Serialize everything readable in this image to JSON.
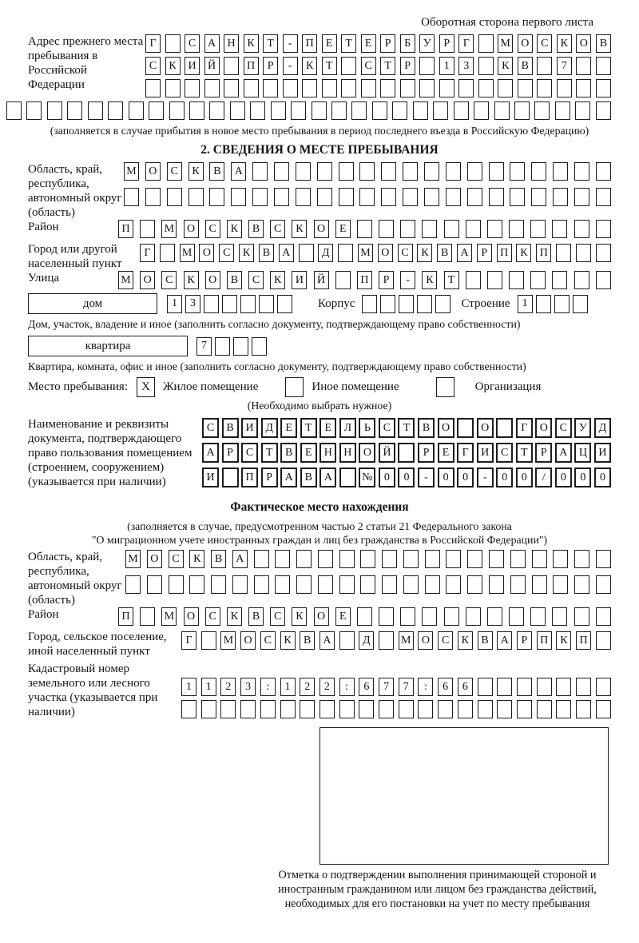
{
  "page": {
    "header_note": "Оборотная сторона первого листа"
  },
  "prev_address": {
    "label": "Адрес прежнего места пребывания в Российской Федерации",
    "rows": [
      {
        "text": "Г САНКТ-ПЕТЕРБУРГ МОСКОВ",
        "len": 24
      },
      {
        "text": "СКИЙ ПР-КТ СТР 13 КВ 7",
        "len": 24
      },
      {
        "text": "",
        "len": 24
      }
    ],
    "overflow_row": {
      "text": "",
      "len": 30
    },
    "caption": "(заполняется в случае прибытия в новое место пребывания в период последнего въезда в Российскую Федерацию)"
  },
  "section2": {
    "title": "2. СВЕДЕНИЯ О МЕСТЕ ПРЕБЫВАНИЯ",
    "oblast": {
      "label": "Область, край, республика, автономный округ (область)",
      "rows": [
        {
          "text": "МОСКВА",
          "len": 23
        },
        {
          "text": "",
          "len": 23
        }
      ]
    },
    "raion": {
      "label": "Район",
      "row": {
        "text": "П МОСКВСКОЕ",
        "len": 23
      }
    },
    "gorod": {
      "label": "Город или другой населенный пункт",
      "row": {
        "text": "Г МОСКВА Д МОСКВАРПКП",
        "len": 24
      }
    },
    "ulitsa": {
      "label": "Улица",
      "row": {
        "text": "МОСКОВСКИЙ ПР-КТ",
        "len": 23
      }
    },
    "dom": {
      "box_label": "дом",
      "cells": {
        "text": "13",
        "len": 7
      },
      "korpus_label": "Корпус",
      "korpus_cells": {
        "text": "",
        "len": 5
      },
      "stroenie_label": "Строение",
      "stroenie_cells": {
        "text": "1",
        "len": 4
      },
      "caption": "Дом, участок, владение и иное (заполнить согласно документу, подтверждающему право собственности)"
    },
    "kvartira": {
      "box_label": "квартира",
      "cells": {
        "text": "7",
        "len": 4
      },
      "caption": "Квартира, комната, офис и иное (заполнить согласно документу, подтверждающему право собственности)"
    },
    "mesto": {
      "label": "Место пребывания:",
      "options": [
        {
          "label": "Жилое помещение",
          "mark": "X"
        },
        {
          "label": "Иное помещение",
          "mark": ""
        },
        {
          "label": "Организация",
          "mark": ""
        }
      ],
      "caption": "(Необходимо выбрать нужное)"
    },
    "document": {
      "label": "Наименование и реквизиты документа, подтверждающего право пользования помещением (строением, сооружением) (указывается при наличии)",
      "rows": [
        {
          "text": "СВИДЕТЕЛЬСТВО О ГОСУД",
          "len": 21
        },
        {
          "text": "АРСТВЕННОЙ РЕГИСТРАЦИ",
          "len": 21
        },
        {
          "text": "И ПРАВА №00-00-00/000",
          "len": 21
        }
      ]
    }
  },
  "fact": {
    "title": "Фактическое место нахождения",
    "caption_line1": "(заполняется в случае, предусмотренном частью 2 статьи 21 Федерального закона",
    "caption_line2": "\"О миграционном учете иностранных граждан и лиц без гражданства в Российской Федерации\")",
    "oblast": {
      "label": "Область, край, республика, автономный округ (область)",
      "rows": [
        {
          "text": "МОСКВА",
          "len": 23
        },
        {
          "text": "",
          "len": 23
        }
      ]
    },
    "raion": {
      "label": "Район",
      "row": {
        "text": "П МОСКВСКОЕ",
        "len": 23
      }
    },
    "gorod": {
      "label": "Город, сельское поселение, иной населенный пункт",
      "row": {
        "text": "Г МОСКВА Д МОСКВАРПКП",
        "len": 22
      }
    },
    "kadastr": {
      "label": "Кадастровый номер земельного или лесного участка (указывается при наличии)",
      "rows": [
        {
          "text": "1123:122:677:66",
          "len": 22
        },
        {
          "text": "",
          "len": 22
        }
      ]
    },
    "stamp_caption": "Отметка о подтверждении выполнения принимающей стороной и иностранным гражданином или лицом без гражданства действий, необходимых для его постановки на учет по месту пребывания"
  }
}
